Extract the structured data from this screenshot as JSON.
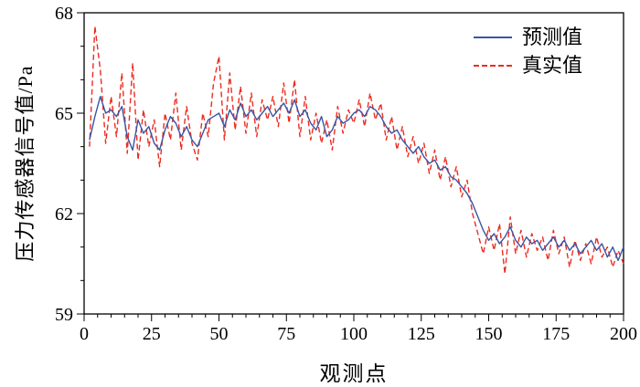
{
  "chart_data": {
    "type": "line",
    "title": "",
    "xlabel": "观测点",
    "ylabel": "压力传感器信号值/Pa",
    "xlim": [
      0,
      200
    ],
    "ylim": [
      59,
      68
    ],
    "x_ticks": [
      0,
      25,
      50,
      75,
      100,
      125,
      150,
      175,
      200
    ],
    "y_ticks": [
      59,
      62,
      65,
      68
    ],
    "x_minor_step": 5,
    "y_minor_step": 1,
    "grid": false,
    "legend_position": "top-right-inside",
    "axis_color": "#000000",
    "x": [
      2,
      4,
      6,
      8,
      10,
      12,
      14,
      16,
      18,
      20,
      22,
      24,
      26,
      28,
      30,
      32,
      34,
      36,
      38,
      40,
      42,
      44,
      46,
      48,
      50,
      52,
      54,
      56,
      58,
      60,
      62,
      64,
      66,
      68,
      70,
      72,
      74,
      76,
      78,
      80,
      82,
      84,
      86,
      88,
      90,
      92,
      94,
      96,
      98,
      100,
      102,
      104,
      106,
      108,
      110,
      112,
      114,
      116,
      118,
      120,
      122,
      124,
      126,
      128,
      130,
      132,
      134,
      136,
      138,
      140,
      142,
      144,
      146,
      148,
      150,
      152,
      154,
      156,
      158,
      160,
      162,
      164,
      166,
      168,
      170,
      172,
      174,
      176,
      178,
      180,
      182,
      184,
      186,
      188,
      190,
      192,
      194,
      196,
      198,
      200
    ],
    "series": [
      {
        "name": "预测值",
        "color": "#3a55a4",
        "style": "solid",
        "values": [
          64.2,
          64.9,
          65.5,
          65.0,
          65.1,
          64.9,
          65.2,
          64.3,
          63.9,
          64.8,
          64.4,
          64.6,
          64.1,
          63.9,
          64.5,
          64.9,
          64.7,
          64.3,
          64.6,
          64.2,
          64.0,
          64.4,
          64.8,
          64.9,
          65.0,
          64.6,
          65.1,
          64.8,
          65.3,
          64.9,
          65.1,
          64.8,
          65.0,
          65.2,
          64.9,
          65.1,
          65.3,
          65.0,
          65.4,
          64.9,
          65.1,
          64.7,
          64.5,
          64.9,
          64.3,
          64.5,
          64.9,
          64.7,
          64.8,
          65.0,
          65.1,
          64.9,
          65.2,
          65.1,
          64.9,
          64.6,
          64.4,
          64.5,
          64.2,
          64.0,
          63.8,
          64.0,
          63.7,
          63.5,
          63.6,
          63.3,
          63.4,
          63.1,
          63.0,
          62.8,
          62.6,
          62.3,
          61.9,
          61.5,
          61.2,
          61.4,
          61.1,
          61.3,
          61.6,
          61.2,
          61.0,
          61.3,
          61.1,
          61.2,
          60.9,
          61.1,
          61.3,
          61.0,
          61.2,
          60.9,
          61.1,
          60.8,
          61.0,
          61.2,
          60.9,
          61.1,
          60.7,
          61.0,
          60.6,
          61.0
        ]
      },
      {
        "name": "真实值",
        "color": "#ec2c20",
        "style": "dashed",
        "values": [
          64.0,
          67.6,
          66.3,
          64.1,
          65.5,
          64.3,
          66.2,
          63.8,
          66.5,
          63.6,
          65.1,
          64.0,
          64.8,
          63.4,
          65.0,
          64.2,
          65.6,
          63.9,
          65.2,
          64.1,
          63.6,
          65.0,
          64.3,
          65.9,
          66.7,
          64.2,
          66.2,
          64.5,
          65.8,
          64.4,
          65.6,
          64.3,
          65.4,
          64.8,
          65.5,
          64.6,
          65.9,
          64.7,
          66.0,
          64.3,
          65.5,
          64.2,
          65.0,
          64.1,
          64.8,
          63.9,
          65.2,
          64.4,
          65.1,
          64.7,
          65.4,
          64.6,
          65.6,
          64.8,
          65.3,
          64.2,
          64.9,
          63.9,
          64.6,
          63.7,
          64.3,
          63.5,
          64.1,
          63.2,
          63.9,
          63.0,
          63.7,
          62.8,
          63.4,
          62.5,
          63.0,
          62.0,
          61.4,
          60.8,
          61.6,
          60.9,
          61.7,
          60.2,
          61.9,
          60.8,
          61.5,
          60.7,
          61.4,
          60.9,
          61.3,
          60.6,
          61.5,
          60.8,
          61.3,
          60.4,
          61.2,
          60.6,
          61.1,
          60.5,
          61.3,
          60.7,
          61.0,
          60.4,
          60.9,
          60.5
        ]
      }
    ]
  }
}
